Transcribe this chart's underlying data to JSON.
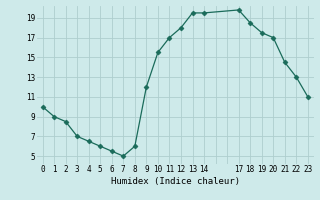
{
  "x": [
    0,
    1,
    2,
    3,
    4,
    5,
    6,
    7,
    8,
    9,
    10,
    11,
    12,
    13,
    14,
    17,
    18,
    19,
    20,
    21,
    22,
    23
  ],
  "y": [
    10,
    9,
    8.5,
    7,
    6.5,
    6,
    5.5,
    5,
    6,
    12,
    15.5,
    17,
    18,
    19.5,
    19.5,
    19.8,
    18.5,
    17.5,
    17,
    14.5,
    13,
    11
  ],
  "line_color": "#1a6b5a",
  "marker": "D",
  "marker_size": 2.5,
  "bg_color": "#ceeaea",
  "grid_color": "#aecece",
  "xlabel": "Humidex (Indice chaleur)",
  "xlim": [
    -0.5,
    23.5
  ],
  "ylim": [
    4.2,
    20.2
  ],
  "yticks": [
    5,
    7,
    9,
    11,
    13,
    15,
    17,
    19
  ],
  "xtick_labels": [
    "0",
    "1",
    "2",
    "3",
    "4",
    "5",
    "6",
    "7",
    "8",
    "9",
    "10",
    "11",
    "12",
    "13",
    "14",
    "",
    "",
    "17",
    "18",
    "19",
    "20",
    "21",
    "22",
    "23"
  ],
  "xtick_positions": [
    0,
    1,
    2,
    3,
    4,
    5,
    6,
    7,
    8,
    9,
    10,
    11,
    12,
    13,
    14,
    15,
    16,
    17,
    18,
    19,
    20,
    21,
    22,
    23
  ],
  "label_fontsize": 6.5,
  "tick_fontsize": 5.5
}
